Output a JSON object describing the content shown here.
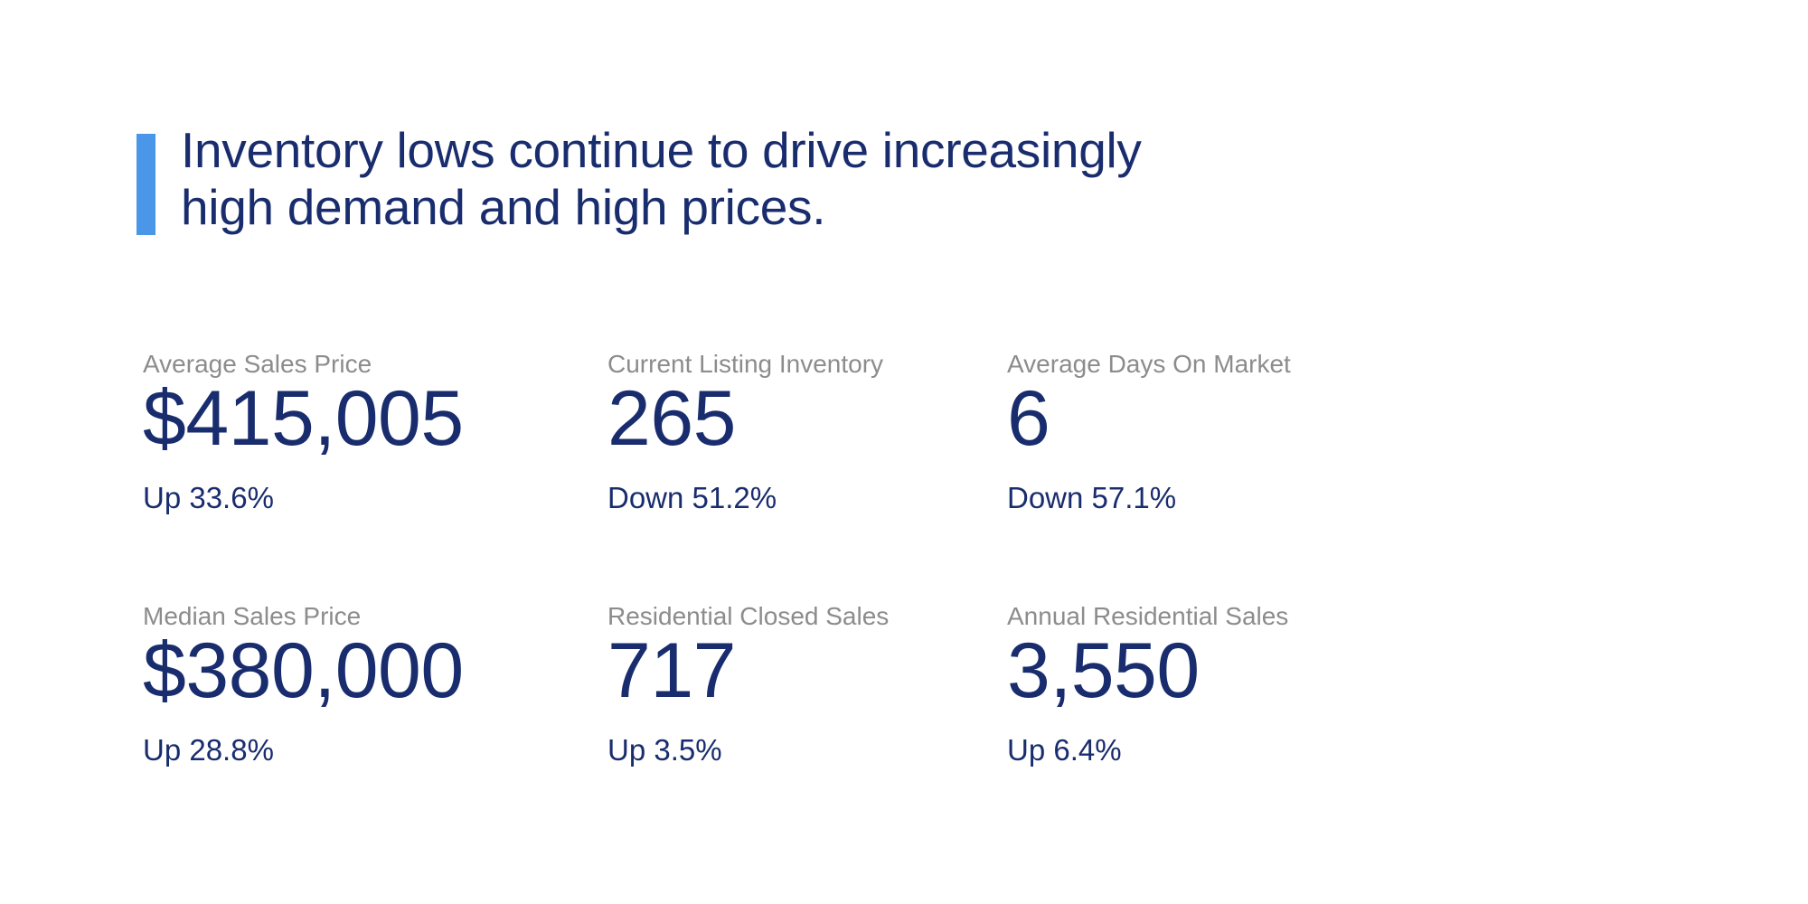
{
  "headline": {
    "line1": "Inventory lows continue to drive increasingly",
    "line2": "high demand and high prices."
  },
  "stats": [
    {
      "label": "Average Sales Price",
      "value": "$415,005",
      "delta": "Up 33.6%"
    },
    {
      "label": "Current Listing Inventory",
      "value": "265",
      "delta": "Down 51.2%"
    },
    {
      "label": "Average Days On Market",
      "value": "6",
      "delta": "Down 57.1%"
    },
    {
      "label": "Median Sales Price",
      "value": "$380,000",
      "delta": "Up 28.8%"
    },
    {
      "label": "Residential Closed Sales",
      "value": "717",
      "delta": "Up 3.5%"
    },
    {
      "label": "Annual Residential Sales",
      "value": "3,550",
      "delta": "Up 6.4%"
    }
  ],
  "colors": {
    "accent_blue": "#4A96E8",
    "navy_text": "#192D6E",
    "label_gray": "#8C8C8C",
    "background": "#FFFFFF"
  }
}
